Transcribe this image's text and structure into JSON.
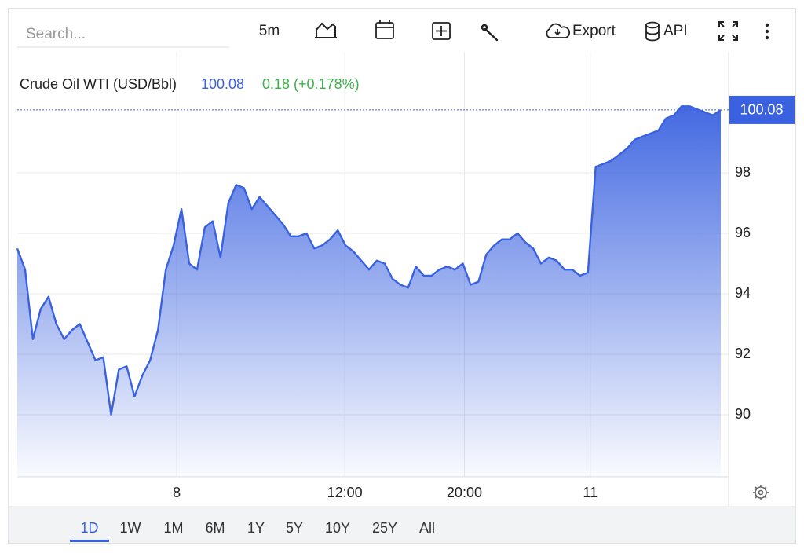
{
  "toolbar": {
    "search_placeholder": "Search...",
    "interval": "5m",
    "export": "Export",
    "api": "API"
  },
  "ranges": {
    "items": [
      "1D",
      "1W",
      "1M",
      "6M",
      "1Y",
      "5Y",
      "10Y",
      "25Y",
      "All"
    ],
    "active": 0
  },
  "chart_data": {
    "type": "area",
    "title": "Crude Oil WTI (USD/Bbl)",
    "change": "0.18 (+0.178%)",
    "series": [
      {
        "name": "Crude Oil WTI",
        "color": "#3a62e0",
        "values": [
          95.5,
          94.8,
          92.5,
          93.5,
          93.9,
          93.0,
          92.5,
          92.8,
          93.0,
          92.4,
          91.8,
          91.9,
          90.0,
          91.5,
          91.6,
          90.6,
          91.3,
          91.8,
          92.8,
          94.8,
          95.6,
          96.8,
          95.0,
          94.8,
          96.2,
          96.4,
          95.2,
          97.0,
          97.6,
          97.5,
          96.8,
          97.2,
          96.9,
          96.6,
          96.3,
          95.9,
          95.9,
          96.0,
          95.5,
          95.6,
          95.8,
          96.1,
          95.6,
          95.4,
          95.1,
          94.8,
          95.1,
          95.0,
          94.5,
          94.3,
          94.2,
          94.9,
          94.6,
          94.6,
          94.8,
          94.9,
          94.8,
          95.0,
          94.3,
          94.4,
          95.3,
          95.6,
          95.8,
          95.8,
          96.0,
          95.7,
          95.5,
          95.0,
          95.2,
          95.1,
          94.8,
          94.8,
          94.6,
          94.7,
          98.2,
          98.3,
          98.4,
          98.6,
          98.8,
          99.1,
          99.2,
          99.3,
          99.4,
          99.8,
          99.9,
          100.2,
          100.2,
          100.1,
          100.0,
          99.9,
          100.08
        ]
      }
    ],
    "xlim": [
      0,
      90
    ],
    "xticks": [
      {
        "value": 20.4,
        "label": "8"
      },
      {
        "value": 41.9,
        "label": "12:00"
      },
      {
        "value": 57.2,
        "label": "20:00"
      },
      {
        "value": 73.3,
        "label": "11"
      }
    ],
    "ylim": [
      88,
      102
    ],
    "yticks": [
      90,
      92,
      94,
      96,
      98
    ],
    "grid": true
  }
}
